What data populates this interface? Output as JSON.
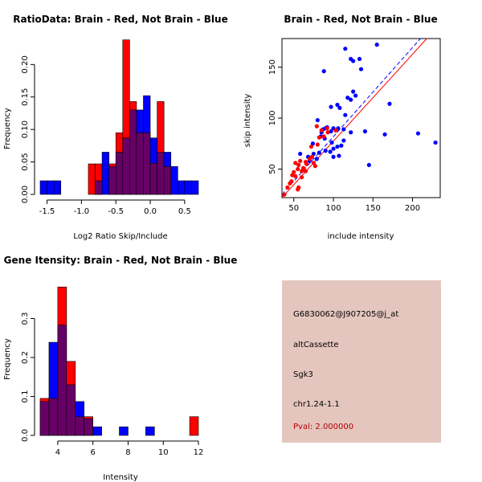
{
  "colors": {
    "red": "#ff0000",
    "blue": "#0000ff",
    "overlap": "#660066",
    "panel": "#e5c6bf",
    "pval": "#b00000"
  },
  "chart_data": [
    {
      "type": "bar",
      "title": "RatioData: Brain - Red, Not Brain - Blue",
      "xlabel": "Log2 Ratio Skip/Include",
      "ylabel": "Frequency",
      "xlim": [
        -1.6,
        0.7
      ],
      "ylim": [
        0,
        0.24
      ],
      "xticks": [
        -1.5,
        -1.0,
        -0.5,
        0.0,
        0.5
      ],
      "xtick_labels": [
        "-1.5",
        "-1.0",
        "-0.5",
        "0.0",
        "0.5"
      ],
      "yticks": [
        0.0,
        0.05,
        0.1,
        0.15,
        0.2
      ],
      "ytick_labels": [
        "0.00",
        "0.05",
        "0.10",
        "0.15",
        "0.20"
      ],
      "bin_width": 0.1,
      "bin_starts": [
        -1.6,
        -1.5,
        -1.4,
        -1.3,
        -1.2,
        -1.1,
        -1.0,
        -0.9,
        -0.8,
        -0.7,
        -0.6,
        -0.5,
        -0.4,
        -0.3,
        -0.2,
        -0.1,
        0.0,
        0.1,
        0.2,
        0.3,
        0.4,
        0.5,
        0.6
      ],
      "series": [
        {
          "name": "Brain",
          "color": "red",
          "values": [
            0,
            0,
            0,
            0,
            0,
            0,
            0,
            0.047,
            0.047,
            0.0,
            0.047,
            0.095,
            0.238,
            0.143,
            0.095,
            0.095,
            0.048,
            0.143,
            0.043,
            0,
            0,
            0,
            0
          ]
        },
        {
          "name": "Not Brain",
          "color": "blue",
          "values": [
            0.021,
            0.021,
            0.021,
            0,
            0,
            0,
            0,
            0,
            0.021,
            0.065,
            0.043,
            0.065,
            0.087,
            0.13,
            0.13,
            0.152,
            0.087,
            0.065,
            0.065,
            0.043,
            0.021,
            0.021,
            0.021
          ]
        }
      ]
    },
    {
      "type": "scatter",
      "title": "Brain - Red, Not Brain - Blue",
      "xlabel": "include intensity",
      "ylabel": "skip intensity",
      "xlim": [
        35,
        235
      ],
      "ylim": [
        22,
        178
      ],
      "xticks": [
        50,
        100,
        150,
        200
      ],
      "xtick_labels": [
        "50",
        "100",
        "150",
        "200"
      ],
      "yticks": [
        50,
        100,
        150
      ],
      "ytick_labels": [
        "50",
        "100",
        "150"
      ],
      "fit_lines": [
        {
          "name": "Not Brain fit",
          "color": "blue",
          "style": "dashed",
          "x": [
            35,
            210
          ],
          "y": [
            25,
            178
          ]
        },
        {
          "name": "Brain fit",
          "color": "red",
          "style": "solid",
          "x": [
            35,
            218
          ],
          "y": [
            22,
            178
          ]
        }
      ],
      "series": [
        {
          "name": "Not Brain",
          "color": "blue",
          "points": [
            [
              115,
              168
            ],
            [
              155,
              172
            ],
            [
              122,
              158
            ],
            [
              125,
              156
            ],
            [
              133,
              158
            ],
            [
              135,
              148
            ],
            [
              88,
              146
            ],
            [
              105,
              113
            ],
            [
              108,
              110
            ],
            [
              122,
              118
            ],
            [
              125,
              126
            ],
            [
              128,
              122
            ],
            [
              118,
              120
            ],
            [
              171,
              114
            ],
            [
              97,
              111
            ],
            [
              115,
              103
            ],
            [
              80,
              98
            ],
            [
              87,
              89
            ],
            [
              90,
              90
            ],
            [
              92,
              91
            ],
            [
              100,
              90
            ],
            [
              103,
              88
            ],
            [
              97,
              87
            ],
            [
              106,
              90
            ],
            [
              113,
              89
            ],
            [
              85,
              86
            ],
            [
              140,
              87
            ],
            [
              122,
              86
            ],
            [
              84,
              82
            ],
            [
              113,
              78
            ],
            [
              98,
              76
            ],
            [
              105,
              72
            ],
            [
              100,
              70
            ],
            [
              90,
              68
            ],
            [
              96,
              67
            ],
            [
              82,
              66
            ],
            [
              100,
              62
            ],
            [
              107,
              63
            ],
            [
              75,
              65
            ],
            [
              68,
              62
            ],
            [
              79,
              60
            ],
            [
              70,
              58
            ],
            [
              145,
              54
            ],
            [
              165,
              84
            ],
            [
              207,
              85
            ],
            [
              229,
              76
            ],
            [
              58,
              65
            ],
            [
              74,
              75
            ],
            [
              89,
              80
            ],
            [
              110,
              73
            ]
          ]
        },
        {
          "name": "Brain",
          "color": "red",
          "points": [
            [
              38,
              25
            ],
            [
              42,
              32
            ],
            [
              47,
              38
            ],
            [
              48,
              44
            ],
            [
              50,
              47
            ],
            [
              52,
              43
            ],
            [
              55,
              50
            ],
            [
              56,
              54
            ],
            [
              60,
              48
            ],
            [
              62,
              51
            ],
            [
              58,
              58
            ],
            [
              65,
              57
            ],
            [
              66,
              55
            ],
            [
              70,
              60
            ],
            [
              73,
              62
            ],
            [
              75,
              56
            ],
            [
              77,
              53
            ],
            [
              80,
              74
            ],
            [
              82,
              81
            ],
            [
              85,
              88
            ],
            [
              88,
              82
            ],
            [
              93,
              86
            ],
            [
              103,
              88
            ],
            [
              55,
              30
            ],
            [
              60,
              42
            ],
            [
              52,
              56
            ],
            [
              72,
              72
            ],
            [
              92,
              90
            ],
            [
              45,
              36
            ],
            [
              65,
              48
            ],
            [
              56,
              32
            ],
            [
              79,
              92
            ]
          ]
        }
      ]
    },
    {
      "type": "bar",
      "title": "Gene Itensity: Brain - Red, Not Brain - Blue",
      "xlabel": "Intensity",
      "ylabel": "Frequency",
      "xlim": [
        3,
        12
      ],
      "ylim": [
        0,
        0.4
      ],
      "xticks": [
        4,
        6,
        8,
        10,
        12
      ],
      "xtick_labels": [
        "4",
        "6",
        "8",
        "10",
        "12"
      ],
      "yticks": [
        0.0,
        0.1,
        0.2,
        0.3
      ],
      "ytick_labels": [
        "0.0",
        "0.1",
        "0.2",
        "0.3"
      ],
      "bin_width": 0.5,
      "bin_starts": [
        3.0,
        3.5,
        4.0,
        4.5,
        5.0,
        5.5,
        6.0,
        6.5,
        7.0,
        7.5,
        8.0,
        8.5,
        9.0,
        9.5,
        10.0,
        10.5,
        11.0,
        11.5
      ],
      "series": [
        {
          "name": "Brain",
          "color": "red",
          "values": [
            0.095,
            0.095,
            0.381,
            0.19,
            0.048,
            0.048,
            0,
            0,
            0,
            0,
            0,
            0,
            0,
            0,
            0,
            0,
            0,
            0.048
          ]
        },
        {
          "name": "Not Brain",
          "color": "blue",
          "values": [
            0.087,
            0.239,
            0.283,
            0.13,
            0.087,
            0.043,
            0.022,
            0,
            0,
            0.022,
            0,
            0,
            0.022,
            0,
            0,
            0,
            0,
            0
          ]
        }
      ]
    }
  ],
  "info_panel": {
    "probe_id": "G6830062@J907205@j_at",
    "event_type": "altCassette",
    "gene": "Sgk3",
    "location": "chr1.24-1.1",
    "pval": "Pval: 2.000000"
  }
}
